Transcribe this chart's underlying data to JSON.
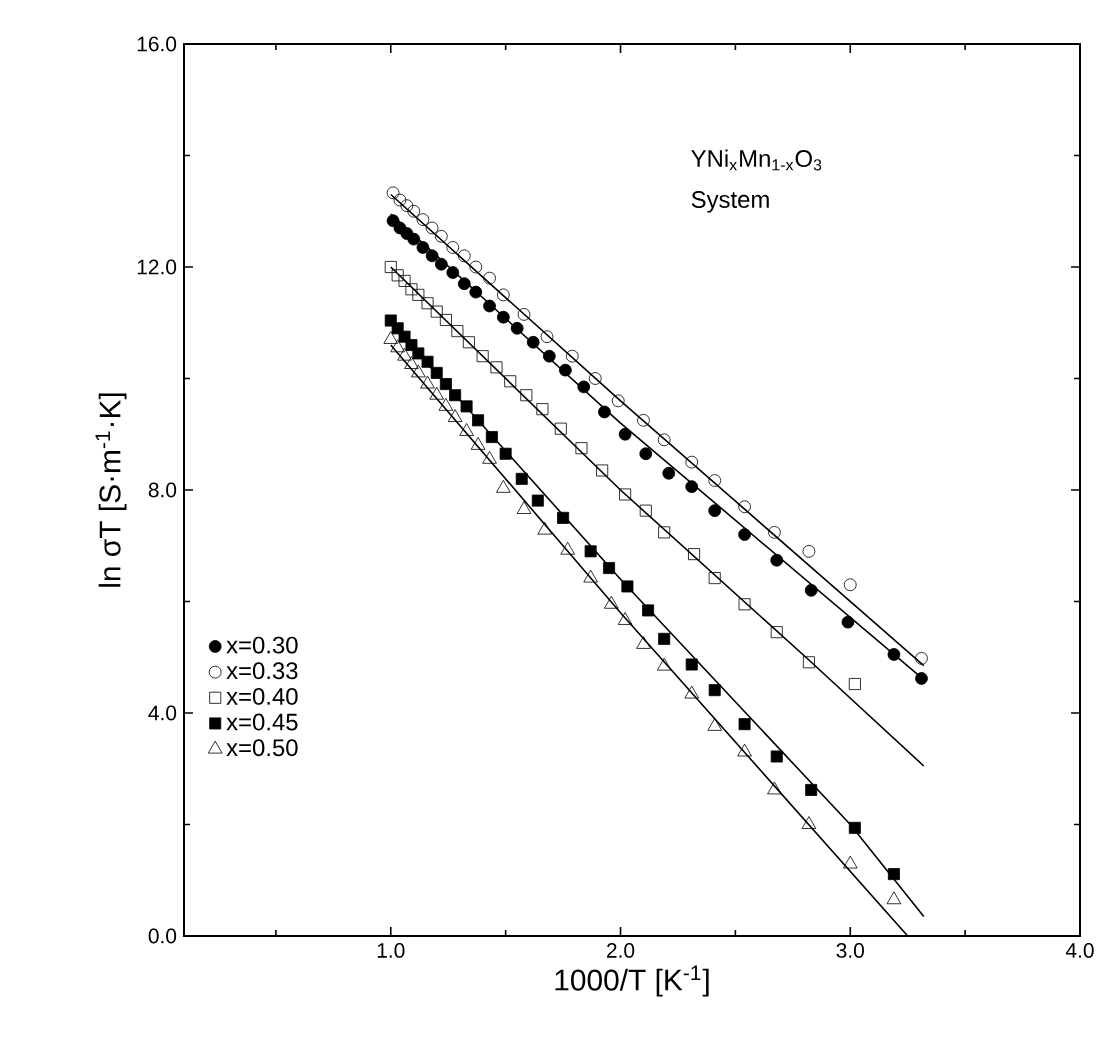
{
  "chart_data": {
    "type": "scatter",
    "xlabel": "1000/T  [K$^{-1}$]",
    "ylabel": "ln σT  [S·m$^{-1}$·K]",
    "annotations": [
      "YNi$_{x}$Mn$_{1-x}$O$_{3}$",
      "System"
    ],
    "xlim": [
      0.1,
      4.0
    ],
    "ylim": [
      0.0,
      16.0
    ],
    "xticks": [
      {
        "value": 0.5,
        "label": null
      },
      {
        "value": 1.0,
        "label": "1.0"
      },
      {
        "value": 1.5,
        "label": null
      },
      {
        "value": 2.0,
        "label": "2.0"
      },
      {
        "value": 2.5,
        "label": null
      },
      {
        "value": 3.0,
        "label": "3.0"
      },
      {
        "value": 3.5,
        "label": null
      },
      {
        "value": 4.0,
        "label": "4.0"
      }
    ],
    "yticks": [
      {
        "value": 0.0,
        "label": "0.0"
      },
      {
        "value": 2.0,
        "label": null
      },
      {
        "value": 4.0,
        "label": "4.0"
      },
      {
        "value": 6.0,
        "label": null
      },
      {
        "value": 8.0,
        "label": "8.0"
      },
      {
        "value": 10.0,
        "label": null
      },
      {
        "value": 12.0,
        "label": "12.0"
      },
      {
        "value": 14.0,
        "label": null
      },
      {
        "value": 16.0,
        "label": "16.0"
      }
    ],
    "legend": "bottom left",
    "grid": false,
    "series": [
      {
        "name": "x=0.30",
        "marker": "circle",
        "color": "#000000",
        "x": [
          1.01,
          1.04,
          1.07,
          1.1,
          1.14,
          1.18,
          1.22,
          1.27,
          1.32,
          1.37,
          1.43,
          1.49,
          1.55,
          1.62,
          1.69,
          1.76,
          1.84,
          1.93,
          2.02,
          2.11,
          2.21,
          2.31,
          2.41,
          2.54,
          2.68,
          2.83,
          2.99,
          3.19,
          3.31
        ],
        "values": [
          12.83,
          12.7,
          12.6,
          12.5,
          12.35,
          12.2,
          12.05,
          11.9,
          11.7,
          11.55,
          11.3,
          11.1,
          10.9,
          10.65,
          10.4,
          10.15,
          9.85,
          9.4,
          9.0,
          8.65,
          8.3,
          8.06,
          7.63,
          7.2,
          6.74,
          6.2,
          5.63,
          5.05,
          4.62
        ]
      },
      {
        "name": "x=0.33",
        "marker": "circle-open",
        "color": "#000000",
        "x": [
          1.01,
          1.04,
          1.07,
          1.1,
          1.14,
          1.18,
          1.22,
          1.27,
          1.32,
          1.37,
          1.43,
          1.49,
          1.58,
          1.68,
          1.79,
          1.89,
          1.99,
          2.1,
          2.19,
          2.31,
          2.41,
          2.54,
          2.67,
          2.82,
          3.0,
          3.31
        ],
        "values": [
          13.33,
          13.2,
          13.1,
          13.0,
          12.85,
          12.7,
          12.55,
          12.35,
          12.2,
          12.0,
          11.8,
          11.5,
          11.15,
          10.75,
          10.4,
          10.0,
          9.6,
          9.25,
          8.9,
          8.5,
          8.17,
          7.7,
          7.24,
          6.9,
          6.3,
          4.98
        ]
      },
      {
        "name": "x=0.40",
        "marker": "square-open",
        "color": "#000000",
        "x": [
          1.0,
          1.03,
          1.06,
          1.09,
          1.12,
          1.16,
          1.2,
          1.24,
          1.29,
          1.34,
          1.4,
          1.46,
          1.52,
          1.59,
          1.66,
          1.74,
          1.83,
          1.92,
          2.02,
          2.11,
          2.19,
          2.32,
          2.41,
          2.54,
          2.68,
          2.82,
          3.02
        ],
        "values": [
          12.0,
          11.85,
          11.75,
          11.6,
          11.5,
          11.35,
          11.2,
          11.05,
          10.85,
          10.65,
          10.4,
          10.2,
          9.95,
          9.7,
          9.45,
          9.1,
          8.75,
          8.35,
          7.92,
          7.63,
          7.24,
          6.85,
          6.42,
          5.95,
          5.45,
          4.91,
          4.52
        ]
      },
      {
        "name": "x=0.45",
        "marker": "square",
        "color": "#000000",
        "x": [
          1.0,
          1.03,
          1.06,
          1.09,
          1.12,
          1.16,
          1.2,
          1.24,
          1.28,
          1.33,
          1.38,
          1.44,
          1.5,
          1.57,
          1.64,
          1.75,
          1.87,
          1.95,
          2.03,
          2.12,
          2.19,
          2.31,
          2.41,
          2.54,
          2.68,
          2.83,
          3.02,
          3.19
        ],
        "values": [
          11.04,
          10.9,
          10.75,
          10.6,
          10.45,
          10.3,
          10.1,
          9.9,
          9.7,
          9.5,
          9.25,
          8.95,
          8.65,
          8.2,
          7.81,
          7.5,
          6.9,
          6.6,
          6.27,
          5.84,
          5.33,
          4.87,
          4.41,
          3.8,
          3.22,
          2.62,
          1.94,
          1.11
        ]
      },
      {
        "name": "x=0.50",
        "marker": "triangle-open",
        "color": "#000000",
        "x": [
          1.0,
          1.03,
          1.06,
          1.09,
          1.12,
          1.16,
          1.2,
          1.24,
          1.28,
          1.33,
          1.38,
          1.43,
          1.49,
          1.58,
          1.67,
          1.77,
          1.87,
          1.96,
          2.02,
          2.1,
          2.19,
          2.31,
          2.41,
          2.54,
          2.67,
          2.82,
          3.0,
          3.19
        ],
        "values": [
          10.7,
          10.55,
          10.4,
          10.25,
          10.1,
          9.9,
          9.7,
          9.5,
          9.3,
          9.05,
          8.8,
          8.55,
          8.03,
          7.65,
          7.28,
          6.92,
          6.42,
          5.95,
          5.66,
          5.23,
          4.84,
          4.34,
          3.76,
          3.3,
          2.62,
          2.0,
          1.29,
          0.65
        ]
      },
      {
        "type": "line",
        "marker": "none",
        "color": "#000000",
        "x": [
          1.0,
          2.0,
          3.32
        ],
        "values": [
          12.95,
          9.2,
          4.6
        ]
      },
      {
        "type": "line",
        "marker": "none",
        "color": "#000000",
        "x": [
          1.0,
          2.0,
          3.32
        ],
        "values": [
          13.3,
          9.6,
          4.85
        ]
      },
      {
        "type": "line",
        "marker": "none",
        "color": "#000000",
        "x": [
          1.0,
          2.0,
          2.82,
          3.32
        ],
        "values": [
          12.0,
          8.0,
          4.95,
          3.05
        ]
      },
      {
        "type": "line",
        "marker": "none",
        "color": "#000000",
        "x": [
          1.0,
          2.0,
          3.0,
          3.32
        ],
        "values": [
          11.0,
          6.4,
          2.0,
          0.35
        ]
      },
      {
        "type": "line",
        "marker": "none",
        "color": "#000000",
        "x": [
          1.0,
          2.0,
          3.25
        ],
        "values": [
          10.6,
          5.8,
          0.0
        ]
      }
    ]
  }
}
